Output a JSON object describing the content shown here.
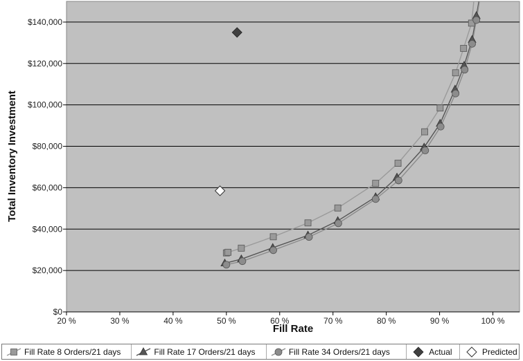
{
  "chart_data": {
    "type": "line",
    "title": "",
    "xlabel": "Fill Rate",
    "ylabel": "Total Inventory Investment",
    "xlim": [
      20,
      105
    ],
    "ylim": [
      0,
      150000
    ],
    "x_ticks": [
      20,
      30,
      40,
      50,
      60,
      70,
      80,
      90,
      100
    ],
    "x_tick_labels": [
      "20 %",
      "30 %",
      "40 %",
      "50 %",
      "60 %",
      "70 %",
      "80 %",
      "90 %",
      "100 %"
    ],
    "y_ticks": [
      0,
      20000,
      40000,
      60000,
      80000,
      100000,
      120000,
      140000
    ],
    "y_tick_labels": [
      "$0",
      "$20,000",
      "$40,000",
      "$60,000",
      "$80,000",
      "$100,000",
      "$120,000",
      "$140,000"
    ],
    "grid": "horizontal",
    "legend": "bottom",
    "background": "#c0c0c0",
    "series": [
      {
        "name": "Fill Rate 8 Orders/21 days",
        "marker": "square",
        "color": "#9a9a9a",
        "points": [
          [
            50,
            28500
          ],
          [
            50.3,
            28800
          ],
          [
            52.8,
            30800
          ],
          [
            58.8,
            36300
          ],
          [
            65.3,
            43000
          ],
          [
            70.9,
            50200
          ],
          [
            78,
            62100
          ],
          [
            82.2,
            71800
          ],
          [
            87.2,
            87000
          ],
          [
            90.1,
            98500
          ],
          [
            93,
            115500
          ],
          [
            94.5,
            127300
          ],
          [
            96,
            139500
          ],
          [
            96.5,
            152000
          ]
        ]
      },
      {
        "name": "Fill Rate 17 Orders/21 days",
        "marker": "triangle",
        "color": "#555555",
        "points": [
          [
            49.7,
            23500
          ],
          [
            52.8,
            25500
          ],
          [
            58.7,
            31000
          ],
          [
            65.3,
            37000
          ],
          [
            70.9,
            44000
          ],
          [
            78,
            55500
          ],
          [
            82,
            65000
          ],
          [
            87.1,
            79500
          ],
          [
            90.1,
            91000
          ],
          [
            92.9,
            107500
          ],
          [
            94.6,
            119000
          ],
          [
            96.1,
            131500
          ],
          [
            96.9,
            143000
          ],
          [
            97.5,
            152000
          ]
        ]
      },
      {
        "name": "Fill Rate 34 Orders/21 days",
        "marker": "circle",
        "color": "#8c8c8c",
        "points": [
          [
            50,
            22800
          ],
          [
            53,
            24500
          ],
          [
            58.8,
            29800
          ],
          [
            65.5,
            36200
          ],
          [
            71,
            42800
          ],
          [
            78,
            54500
          ],
          [
            82.3,
            63500
          ],
          [
            87.3,
            78000
          ],
          [
            90.2,
            89500
          ],
          [
            93,
            105500
          ],
          [
            94.7,
            117000
          ],
          [
            96.1,
            129500
          ],
          [
            96.9,
            141000
          ],
          [
            97.6,
            152000
          ]
        ]
      },
      {
        "name": "Actual",
        "marker": "diamond",
        "color": "#404040",
        "points": [
          [
            52,
            135000
          ]
        ]
      },
      {
        "name": "Predicted",
        "marker": "diamond-open",
        "color": "#ffffff",
        "points": [
          [
            48.8,
            58500
          ]
        ]
      }
    ]
  }
}
